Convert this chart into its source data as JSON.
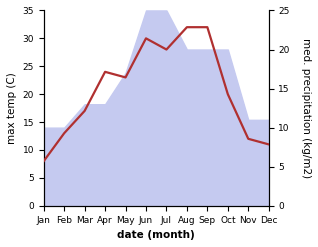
{
  "months": [
    "Jan",
    "Feb",
    "Mar",
    "Apr",
    "May",
    "Jun",
    "Jul",
    "Aug",
    "Sep",
    "Oct",
    "Nov",
    "Dec"
  ],
  "temperature": [
    8,
    13,
    17,
    24,
    23,
    30,
    28,
    32,
    32,
    20,
    12,
    11
  ],
  "precipitation": [
    10,
    10,
    13,
    13,
    17,
    25,
    25,
    20,
    20,
    20,
    11,
    11
  ],
  "temp_color": "#b03030",
  "precip_fill_color": "#c5caf0",
  "temp_ylim": [
    0,
    35
  ],
  "precip_ylim": [
    0,
    25
  ],
  "temp_yticks": [
    0,
    5,
    10,
    15,
    20,
    25,
    30,
    35
  ],
  "precip_yticks": [
    0,
    5,
    10,
    15,
    20,
    25
  ],
  "xlabel": "date (month)",
  "ylabel_left": "max temp (C)",
  "ylabel_right": "med. precipitation (kg/m2)",
  "axis_label_fontsize": 7.5,
  "tick_fontsize": 6.5,
  "line_width": 1.6
}
